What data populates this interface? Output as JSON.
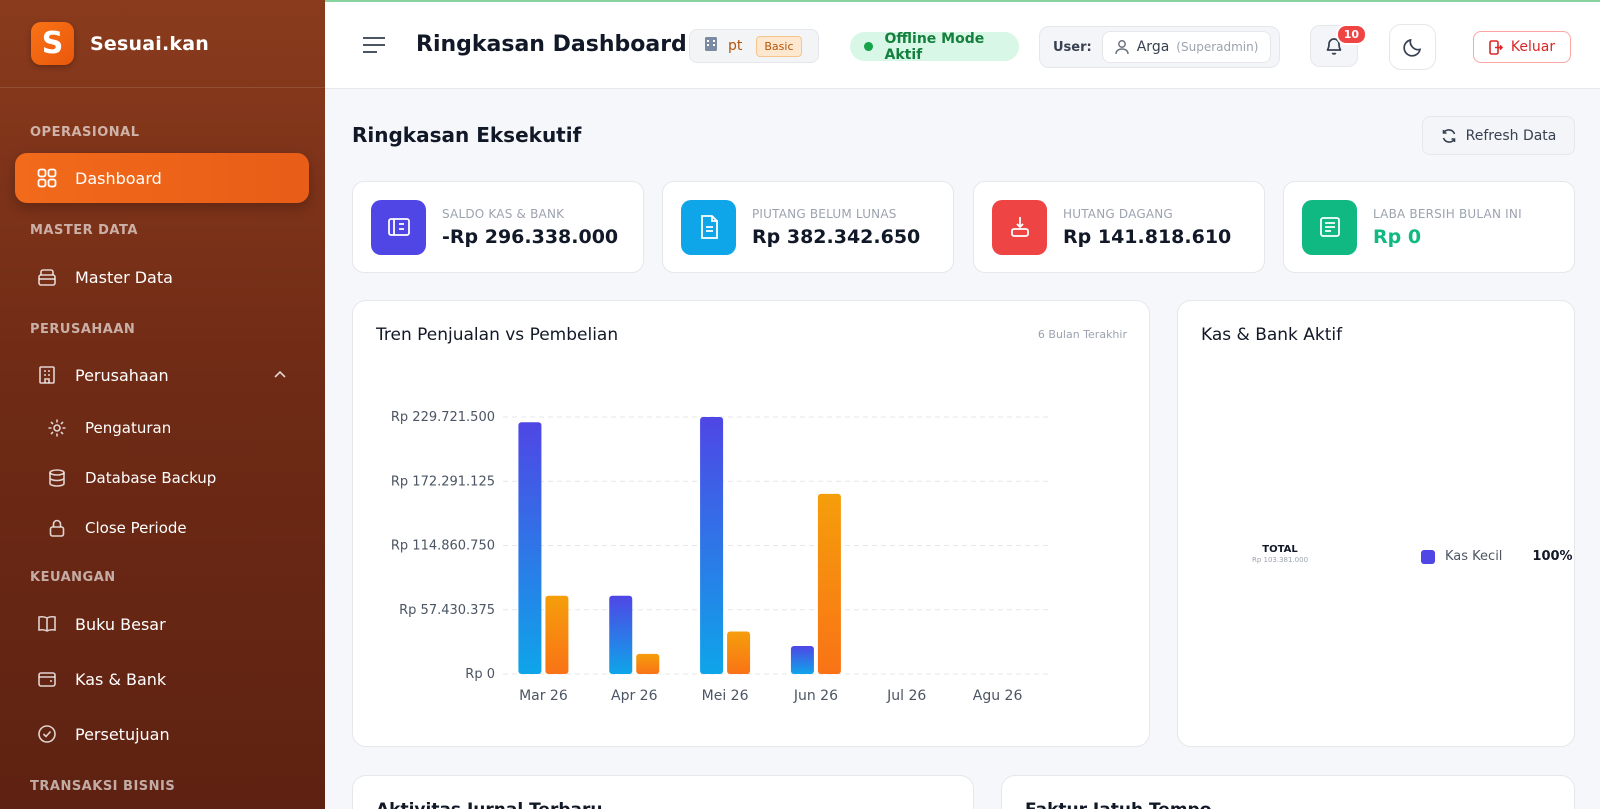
{
  "brand": {
    "logo_letter": "S",
    "name": "Sesuai.kan"
  },
  "sidebar": {
    "sections": {
      "operasional": "OPERASIONAL",
      "master_data": "MASTER DATA",
      "perusahaan": "PERUSAHAAN",
      "keuangan": "KEUANGAN",
      "transaksi": "TRANSAKSI BISNIS"
    },
    "items": {
      "dashboard": "Dashboard",
      "master_data": "Master Data",
      "perusahaan": "Perusahaan",
      "pengaturan": "Pengaturan",
      "database_backup": "Database Backup",
      "close_periode": "Close Periode",
      "buku_besar": "Buku Besar",
      "kas_bank": "Kas & Bank",
      "persetujuan": "Persetujuan"
    },
    "active": "dashboard"
  },
  "header": {
    "title": "Ringkasan Dashboard",
    "company": "pt",
    "plan": "Basic",
    "offline": "Offline Mode Aktif",
    "user_label": "User:",
    "user_name": "Arga",
    "user_role": "(Superadmin)",
    "notifications": "10",
    "logout": "Keluar"
  },
  "main": {
    "title": "Ringkasan Eksekutif",
    "refresh": "Refresh Data"
  },
  "stats": [
    {
      "label": "SALDO KAS & BANK",
      "value": "-Rp 296.338.000",
      "color": "#4f46e5",
      "icon": "wallet-icon"
    },
    {
      "label": "PIUTANG BELUM LUNAS",
      "value": "Rp 382.342.650",
      "color": "#0ea5e9",
      "icon": "document-icon"
    },
    {
      "label": "HUTANG DAGANG",
      "value": "Rp 141.818.610",
      "color": "#ef4444",
      "icon": "payment-icon"
    },
    {
      "label": "LABA BERSIH BULAN INI",
      "value": "Rp 0",
      "color": "#10b981",
      "icon": "report-icon"
    }
  ],
  "trend_card": {
    "title": "Tren Penjualan vs Pembelian",
    "subtitle": "6 Bulan Terakhir"
  },
  "kas_card": {
    "title": "Kas & Bank Aktif",
    "total_label": "TOTAL",
    "total_value": "Rp 103.381.000",
    "legend_label": "Kas Kecil",
    "legend_pct": "100%"
  },
  "bottom": {
    "left_title": "Aktivitas Jurnal Terbaru",
    "right_title": "Faktur Jatuh Tempo"
  },
  "chart_data": {
    "type": "bar",
    "categories": [
      "Mar 26",
      "Apr 26",
      "Mei 26",
      "Jun 26",
      "Jul 26",
      "Agu 26"
    ],
    "series": [
      {
        "values": [
          225000000,
          70000000,
          229721500,
          25000000,
          0,
          0
        ],
        "color": "#4f46e5"
      },
      {
        "values": [
          70000000,
          18000000,
          38000000,
          161000000,
          0,
          0
        ],
        "color": "#f97316"
      }
    ],
    "yticks": [
      "Rp 0",
      "Rp 57.430.375",
      "Rp 114.860.750",
      "Rp 172.291.125",
      "Rp 229.721.500"
    ],
    "ylim": [
      0,
      229721500
    ],
    "grid": true
  }
}
